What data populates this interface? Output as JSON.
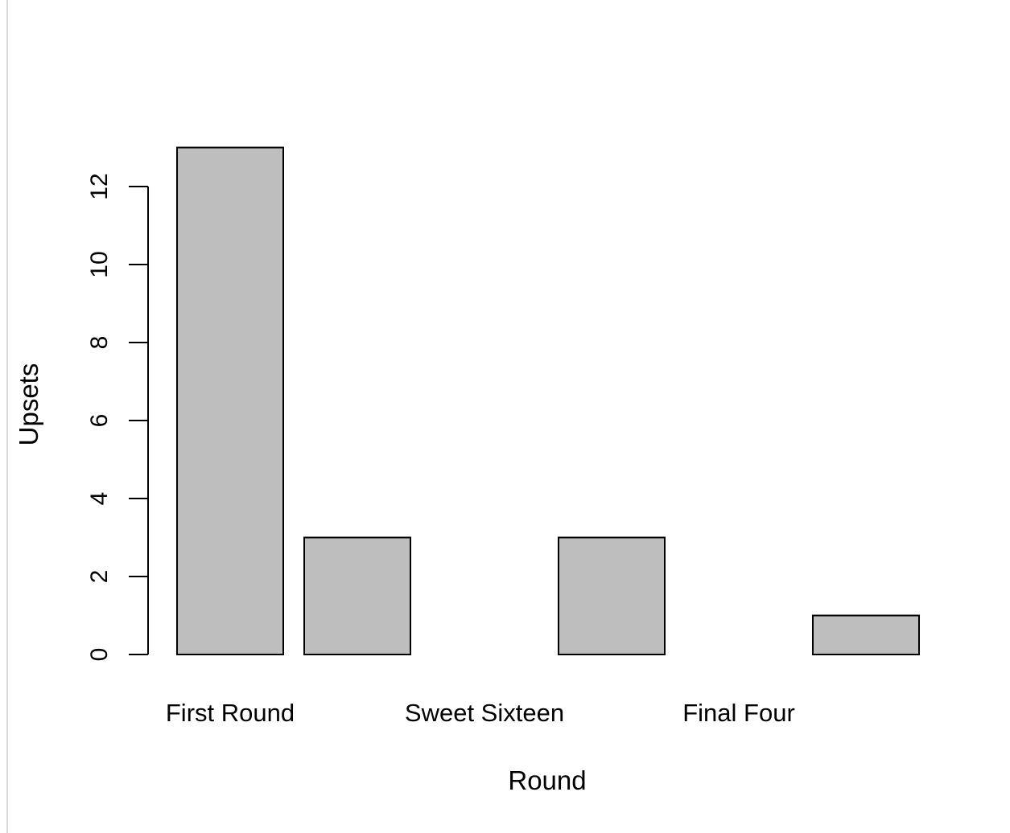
{
  "chart_data": {
    "type": "bar",
    "categories": [
      "First Round",
      "",
      "Sweet Sixteen",
      "",
      "Final Four",
      ""
    ],
    "values": [
      13,
      3,
      0,
      3,
      0,
      1
    ],
    "title": "",
    "xlabel": "Round",
    "ylabel": "Upsets",
    "ylim": [
      0,
      12
    ],
    "yticks": [
      0,
      2,
      4,
      6,
      8,
      10,
      12
    ],
    "grid": false,
    "legend": "none",
    "bar_color": "#bebebe",
    "edge_color": "#000000"
  }
}
